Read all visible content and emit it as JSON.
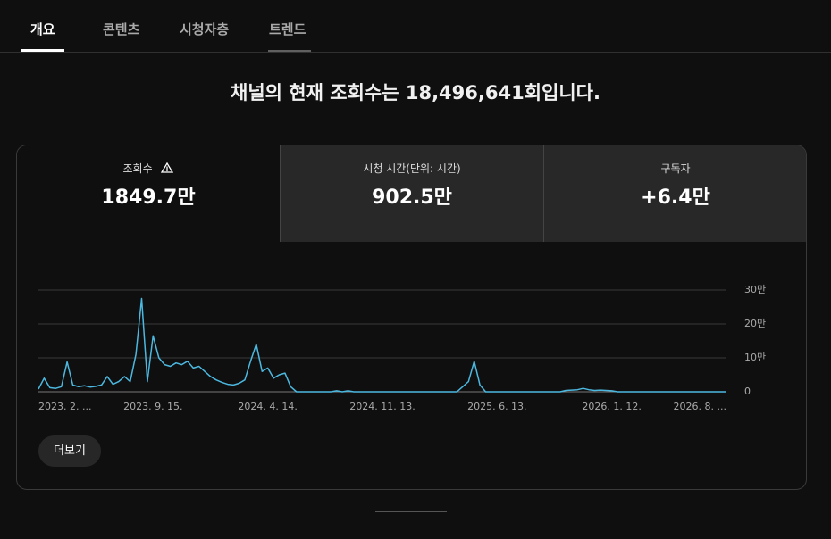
{
  "tabs": [
    "개요",
    "콘텐츠",
    "시청자층",
    "트렌드"
  ],
  "headline": "채널의 현재 조회수는 18,496,641회입니다.",
  "stats": [
    {
      "label": "조회수",
      "value": "1849.7만"
    },
    {
      "label": "시청 시간(단위: 시간)",
      "value": "902.5만"
    },
    {
      "label": "구독자",
      "value": "+6.4만"
    }
  ],
  "chart_data": {
    "type": "line",
    "color": "#4cb8e0",
    "grid": true,
    "categories": [
      "2023. 2. ...",
      null,
      null,
      null,
      null,
      null,
      null,
      null,
      null,
      null,
      null,
      null,
      null,
      null,
      null,
      null,
      null,
      null,
      null,
      null,
      "2023. 9. 15.",
      null,
      null,
      null,
      null,
      null,
      null,
      null,
      null,
      null,
      null,
      null,
      null,
      null,
      null,
      null,
      null,
      null,
      null,
      null,
      "2024. 4. 14.",
      null,
      null,
      null,
      null,
      null,
      null,
      null,
      null,
      null,
      null,
      null,
      null,
      null,
      null,
      null,
      null,
      null,
      null,
      null,
      "2024. 11. 13.",
      null,
      null,
      null,
      null,
      null,
      null,
      null,
      null,
      null,
      null,
      null,
      null,
      null,
      null,
      null,
      null,
      null,
      null,
      null,
      "2025. 6. 13.",
      null,
      null,
      null,
      null,
      null,
      null,
      null,
      null,
      null,
      null,
      null,
      null,
      null,
      null,
      null,
      null,
      null,
      null,
      null,
      "2026. 1. 12.",
      null,
      null,
      null,
      null,
      null,
      null,
      null,
      null,
      null,
      null,
      null,
      null,
      null,
      null,
      null,
      null,
      null,
      null,
      null,
      "2026. 8. ..."
    ],
    "values": [
      8000,
      40000,
      12000,
      10000,
      15000,
      88000,
      20000,
      15000,
      18000,
      14000,
      16000,
      20000,
      45000,
      22000,
      30000,
      45000,
      30000,
      110000,
      275000,
      30000,
      165000,
      100000,
      80000,
      75000,
      85000,
      80000,
      90000,
      70000,
      75000,
      60000,
      45000,
      35000,
      28000,
      22000,
      20000,
      25000,
      35000,
      90000,
      140000,
      60000,
      70000,
      40000,
      50000,
      55000,
      15000,
      0,
      0,
      0,
      0,
      0,
      0,
      0,
      3000,
      0,
      3000,
      0,
      0,
      0,
      0,
      0,
      0,
      0,
      0,
      0,
      0,
      0,
      0,
      0,
      0,
      0,
      0,
      0,
      0,
      0,
      15000,
      30000,
      90000,
      20000,
      0,
      0,
      0,
      0,
      0,
      0,
      0,
      0,
      0,
      0,
      0,
      0,
      0,
      0,
      4000,
      5000,
      6000,
      10000,
      6000,
      4000,
      5000,
      4000,
      3000,
      0,
      0,
      0,
      0,
      0,
      0,
      0,
      0,
      0,
      0,
      0,
      0,
      0,
      0,
      0,
      0,
      0,
      0,
      0,
      0
    ],
    "ylim": [
      0,
      300000
    ],
    "yticks": [
      {
        "value": 0,
        "label": "0"
      },
      {
        "value": 100000,
        "label": "10만"
      },
      {
        "value": 200000,
        "label": "20만"
      },
      {
        "value": 300000,
        "label": "30만"
      }
    ]
  },
  "more_button": "더보기"
}
